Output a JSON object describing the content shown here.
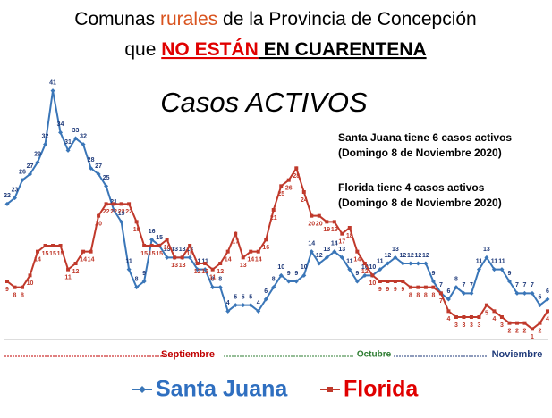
{
  "chart_data": {
    "type": "line",
    "title": {
      "line1": [
        "Comunas ",
        "rurales",
        " de la Provincia de Concepción"
      ],
      "line2": [
        "que ",
        "NO ESTÁN",
        " EN CUARENTENA"
      ]
    },
    "subtitle": "Casos ACTIVOS",
    "annotations": [
      "Santa Juana tiene 6 casos activos",
      "(Domingo 8 de Noviembre 2020)",
      "Florida tiene 4 casos activos",
      "(Domingo 8 de Noviembre 2020)"
    ],
    "months": [
      {
        "label": "Septiembre",
        "color": "#c00000"
      },
      {
        "label": "Octubre",
        "color": "#2e7d32"
      },
      {
        "label": "Noviembre",
        "color": "#1f3a7a"
      }
    ],
    "ylim": [
      0,
      42
    ],
    "series": [
      {
        "name": "Santa Juana",
        "color": "#3a76b8",
        "marker": "diamond",
        "values": [
          22,
          23,
          26,
          27,
          29,
          32,
          41,
          34,
          31,
          33,
          32,
          28,
          27,
          25,
          21,
          19,
          11,
          8,
          9,
          16,
          15,
          13,
          13,
          13,
          13,
          11,
          11,
          8,
          8,
          4,
          5,
          5,
          5,
          4,
          6,
          8,
          10,
          9,
          9,
          10,
          14,
          12,
          13,
          14,
          13,
          11,
          9,
          10,
          10,
          11,
          12,
          13,
          12,
          12,
          12,
          12,
          9,
          7,
          6,
          8,
          7,
          7,
          11,
          13,
          11,
          11,
          9,
          7,
          7,
          7,
          5,
          6
        ]
      },
      {
        "name": "Florida",
        "color": "#c0392b",
        "marker": "square",
        "values": [
          9,
          8,
          8,
          10,
          14,
          15,
          15,
          15,
          11,
          12,
          14,
          14,
          20,
          22,
          22,
          22,
          22,
          19,
          15,
          15,
          15,
          16,
          13,
          13,
          15,
          12,
          12,
          11,
          12,
          14,
          17,
          13,
          14,
          14,
          16,
          21,
          25,
          26,
          28,
          24,
          20,
          20,
          19,
          19,
          17,
          18,
          14,
          12,
          10,
          9,
          9,
          9,
          9,
          8,
          8,
          8,
          8,
          7,
          4,
          3,
          3,
          3,
          3,
          5,
          4,
          3,
          2,
          2,
          2,
          1,
          2,
          4
        ]
      }
    ]
  }
}
